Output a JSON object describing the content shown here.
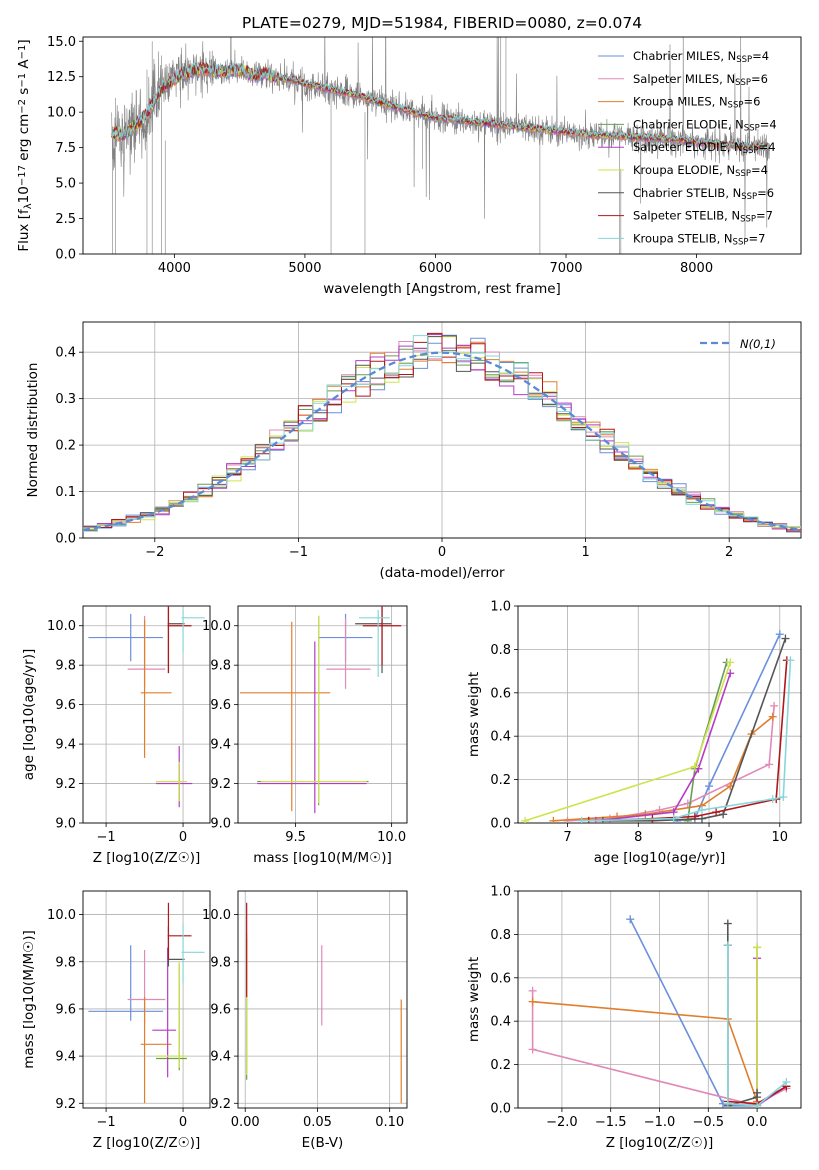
{
  "figure_title": "PLATE=0279, MJD=51984, FIBERID=0080, z=0.074",
  "colors": {
    "chabrier_miles": "#6a8fdc",
    "salpeter_miles": "#e08ab8",
    "kroupa_miles": "#e07e2c",
    "chabrier_elodie": "#6a9c54",
    "salpeter_elodie": "#b43cc4",
    "kroupa_elodie": "#cfe34c",
    "chabrier_stelib": "#555555",
    "salpeter_stelib": "#b0161a",
    "kroupa_stelib": "#86d6da",
    "data": "#808080",
    "normal": "#5a8ad4"
  },
  "chart_data": [
    {
      "id": "spectrum",
      "type": "line",
      "title": "PLATE=0279, MJD=51984, FIBERID=0080, z=0.074",
      "xlabel": "wavelength [Angstrom, rest frame]",
      "ylabel": "Flux [f_λ 10^-17 erg cm^-2 s^-1 A^-1]",
      "xlim": [
        3300,
        8800
      ],
      "ylim": [
        0,
        15.3
      ],
      "xticks": [
        4000,
        5000,
        6000,
        7000,
        8000
      ],
      "yticks": [
        0.0,
        2.5,
        5.0,
        7.5,
        10.0,
        12.5,
        15.0
      ],
      "ytick_labels": [
        "0.0",
        "2.5",
        "5.0",
        "7.5",
        "10.0",
        "12.5",
        "15.0"
      ],
      "legend_position": "top-right",
      "model_continuum": {
        "x": [
          3520,
          3600,
          3700,
          3800,
          3900,
          4000,
          4100,
          4200,
          4300,
          4400,
          4500,
          4600,
          4700,
          4800,
          4900,
          5000,
          5200,
          5400,
          5600,
          5800,
          6000,
          6200,
          6400,
          6600,
          6800,
          7000,
          7200,
          7400,
          7600,
          7800,
          8000,
          8200,
          8400,
          8550
        ],
        "y": [
          8.6,
          8.4,
          9.0,
          10.0,
          11.6,
          12.4,
          12.8,
          13.1,
          12.9,
          12.9,
          13.0,
          12.6,
          12.7,
          12.4,
          12.3,
          12.0,
          11.6,
          11.2,
          10.6,
          10.1,
          9.6,
          9.4,
          9.2,
          9.0,
          8.8,
          8.6,
          8.4,
          8.3,
          8.2,
          8.1,
          7.9,
          7.7,
          7.6,
          7.5
        ]
      },
      "series": [
        {
          "name": "Chabrier MILES, N_SSP=4",
          "color_key": "chabrier_miles"
        },
        {
          "name": "Salpeter MILES, N_SSP=6",
          "color_key": "salpeter_miles"
        },
        {
          "name": "Kroupa MILES, N_SSP=6",
          "color_key": "kroupa_miles"
        },
        {
          "name": "Chabrier ELODIE, N_SSP=4",
          "color_key": "chabrier_elodie"
        },
        {
          "name": "Salpeter ELODIE, N_SSP=4",
          "color_key": "salpeter_elodie"
        },
        {
          "name": "Kroupa ELODIE, N_SSP=4",
          "color_key": "kroupa_elodie"
        },
        {
          "name": "Chabrier STELIB, N_SSP=6",
          "color_key": "chabrier_stelib"
        },
        {
          "name": "Salpeter STELIB, N_SSP=7",
          "color_key": "salpeter_stelib"
        },
        {
          "name": "Kroupa STELIB, N_SSP=7",
          "color_key": "kroupa_stelib"
        }
      ]
    },
    {
      "id": "residuals",
      "type": "line",
      "xlabel": "(data-model)/error",
      "ylabel": "Normed distribution",
      "xlim": [
        -2.5,
        2.5
      ],
      "ylim": [
        0,
        0.465
      ],
      "xticks": [
        -2,
        -1,
        0,
        1,
        2
      ],
      "yticks": [
        0.0,
        0.1,
        0.2,
        0.3,
        0.4
      ],
      "ytick_labels": [
        "0.0",
        "0.1",
        "0.2",
        "0.3",
        "0.4"
      ],
      "grid": true,
      "legend_position": "top-right",
      "legend": "N(0,1)",
      "bin_width": 0.1
    },
    {
      "id": "age_vs_z",
      "type": "scatter",
      "xlabel": "Z [log10(Z/Z☉)]",
      "ylabel": "age [log10(age/yr)]",
      "xlim": [
        -1.3,
        0.35
      ],
      "ylim": [
        9.0,
        10.1
      ],
      "xticks": [
        -1,
        0
      ],
      "yticks": [
        9.0,
        9.2,
        9.4,
        9.6,
        9.8,
        10.0
      ],
      "grid": true,
      "points": [
        {
          "s": "chabrier_miles",
          "x": -0.68,
          "xerr": [
            0.55,
            0.42
          ],
          "y": 9.94,
          "yerr": [
            0.12,
            0.12
          ]
        },
        {
          "s": "salpeter_miles",
          "x": -0.5,
          "xerr": [
            0.22,
            0.27
          ],
          "y": 9.78,
          "yerr": [
            0.09,
            0.27
          ]
        },
        {
          "s": "kroupa_miles",
          "x": -0.5,
          "xerr": [
            0.05,
            0.35
          ],
          "y": 9.66,
          "yerr": [
            0.33,
            0.37
          ]
        },
        {
          "s": "chabrier_elodie",
          "x": -0.05,
          "xerr": [
            0.3,
            0.1
          ],
          "y": 9.21,
          "yerr": [
            0.1,
            0.09
          ]
        },
        {
          "s": "salpeter_elodie",
          "x": -0.05,
          "xerr": [
            0.3,
            0.17
          ],
          "y": 9.2,
          "yerr": [
            0.12,
            0.19
          ]
        },
        {
          "s": "kroupa_elodie",
          "x": -0.05,
          "xerr": [
            0.3,
            0.1
          ],
          "y": 9.21,
          "yerr": [
            0.1,
            0.1
          ]
        },
        {
          "s": "chabrier_stelib",
          "x": -0.19,
          "xerr": [
            0.01,
            0.21
          ],
          "y": 10.01,
          "yerr": [
            0.25,
            0.11
          ]
        },
        {
          "s": "salpeter_stelib",
          "x": -0.19,
          "xerr": [
            0.01,
            0.3
          ],
          "y": 10.0,
          "yerr": [
            0.24,
            0.12
          ]
        },
        {
          "s": "kroupa_stelib",
          "x": 0.0,
          "xerr": [
            0.02,
            0.28
          ],
          "y": 10.04,
          "yerr": [
            0.17,
            0.04
          ]
        }
      ]
    },
    {
      "id": "age_vs_mass",
      "type": "scatter",
      "xlabel": "mass [log10(M/M☉)]",
      "ylabel": "",
      "xlim": [
        9.2,
        10.08
      ],
      "ylim": [
        9.0,
        10.1
      ],
      "xticks": [
        9.5,
        10.0
      ],
      "yticks": [
        9.0,
        9.2,
        9.4,
        9.6,
        9.8,
        10.0
      ],
      "grid": true,
      "points": [
        {
          "s": "chabrier_miles",
          "x": 9.76,
          "xerr": [
            0.14,
            0.14
          ],
          "y": 9.94,
          "yerr": [
            0.12,
            0.12
          ]
        },
        {
          "s": "salpeter_miles",
          "x": 9.76,
          "xerr": [
            0.1,
            0.13
          ],
          "y": 9.78,
          "yerr": [
            0.1,
            0.26
          ]
        },
        {
          "s": "kroupa_miles",
          "x": 9.48,
          "xerr": [
            0.27,
            0.2
          ],
          "y": 9.66,
          "yerr": [
            0.6,
            0.36
          ]
        },
        {
          "s": "chabrier_elodie",
          "x": 9.62,
          "xerr": [
            0.32,
            0.26
          ],
          "y": 9.21,
          "yerr": [
            0.12,
            0.84
          ]
        },
        {
          "s": "salpeter_elodie",
          "x": 9.6,
          "xerr": [
            0.3,
            0.27
          ],
          "y": 9.2,
          "yerr": [
            0.15,
            0.72
          ]
        },
        {
          "s": "kroupa_elodie",
          "x": 9.62,
          "xerr": [
            0.3,
            0.25
          ],
          "y": 9.21,
          "yerr": [
            0.11,
            0.84
          ]
        },
        {
          "s": "chabrier_stelib",
          "x": 9.95,
          "xerr": [
            0.14,
            0.05
          ],
          "y": 10.01,
          "yerr": [
            0.25,
            0.1
          ]
        },
        {
          "s": "salpeter_stelib",
          "x": 9.95,
          "xerr": [
            0.1,
            0.1
          ],
          "y": 10.0,
          "yerr": [
            0.2,
            0.11
          ]
        },
        {
          "s": "kroupa_stelib",
          "x": 9.93,
          "xerr": [
            0.1,
            0.06
          ],
          "y": 10.04,
          "yerr": [
            0.3,
            0.04
          ]
        }
      ]
    },
    {
      "id": "weight_vs_age",
      "type": "line",
      "xlabel": "age [log10(age/yr)]",
      "ylabel": "mass weight",
      "xlim": [
        6.3,
        10.3
      ],
      "ylim": [
        0.0,
        1.0
      ],
      "xticks": [
        7,
        8,
        9,
        10
      ],
      "yticks": [
        0.0,
        0.2,
        0.4,
        0.6,
        0.8,
        1.0
      ],
      "ytick_labels": [
        "0.0",
        "0.2",
        "0.4",
        "0.6",
        "0.8",
        "1.0"
      ],
      "grid": true,
      "series": [
        {
          "s": "chabrier_miles",
          "x": [
            8.55,
            8.8,
            9.0,
            10.0
          ],
          "y": [
            0.01,
            0.02,
            0.17,
            0.87
          ]
        },
        {
          "s": "salpeter_miles",
          "x": [
            7.0,
            7.6,
            8.3,
            8.7,
            9.85,
            9.92
          ],
          "y": [
            0.01,
            0.02,
            0.06,
            0.09,
            0.27,
            0.54
          ]
        },
        {
          "s": "kroupa_miles",
          "x": [
            6.8,
            7.7,
            8.1,
            8.9,
            9.3,
            9.6,
            9.9
          ],
          "y": [
            0.01,
            0.03,
            0.04,
            0.08,
            0.17,
            0.41,
            0.49
          ]
        },
        {
          "s": "chabrier_elodie",
          "x": [
            8.7,
            8.8,
            9.25
          ],
          "y": [
            0.01,
            0.25,
            0.74
          ]
        },
        {
          "s": "salpeter_elodie",
          "x": [
            7.4,
            8.5,
            8.85,
            9.3
          ],
          "y": [
            0.01,
            0.05,
            0.25,
            0.69
          ]
        },
        {
          "s": "kroupa_elodie",
          "x": [
            6.4,
            8.8,
            9.3
          ],
          "y": [
            0.01,
            0.26,
            0.74
          ]
        },
        {
          "s": "chabrier_stelib",
          "x": [
            7.5,
            8.2,
            8.9,
            9.2,
            10.08
          ],
          "y": [
            0.01,
            0.01,
            0.02,
            0.04,
            0.85
          ]
        },
        {
          "s": "salpeter_stelib",
          "x": [
            7.3,
            8.2,
            8.8,
            9.1,
            9.95,
            10.1
          ],
          "y": [
            0.01,
            0.02,
            0.03,
            0.05,
            0.11,
            0.75
          ]
        },
        {
          "s": "kroupa_stelib",
          "x": [
            7.2,
            8.5,
            8.9,
            9.9,
            10.05,
            10.15
          ],
          "y": [
            0.01,
            0.02,
            0.06,
            0.11,
            0.12,
            0.75
          ]
        }
      ]
    },
    {
      "id": "mass_vs_z",
      "type": "scatter",
      "xlabel": "Z [log10(Z/Z☉)]",
      "ylabel": "mass [log10(M/M☉)]",
      "xlim": [
        -1.3,
        0.35
      ],
      "ylim": [
        9.18,
        10.1
      ],
      "xticks": [
        -1,
        0
      ],
      "yticks": [
        9.2,
        9.4,
        9.6,
        9.8,
        10.0
      ],
      "grid": true,
      "points": [
        {
          "s": "chabrier_miles",
          "x": -0.68,
          "xerr": [
            0.55,
            0.42
          ],
          "y": 9.59,
          "yerr": [
            0.04,
            0.28
          ]
        },
        {
          "s": "salpeter_miles",
          "x": -0.5,
          "xerr": [
            0.22,
            0.27
          ],
          "y": 9.64,
          "yerr": [
            0.1,
            0.21
          ]
        },
        {
          "s": "kroupa_miles",
          "x": -0.5,
          "xerr": [
            0.05,
            0.35
          ],
          "y": 9.45,
          "yerr": [
            0.25,
            0.2
          ]
        },
        {
          "s": "chabrier_elodie",
          "x": -0.05,
          "xerr": [
            0.3,
            0.1
          ],
          "y": 9.39,
          "yerr": [
            0.05,
            0.4
          ]
        },
        {
          "s": "salpeter_elodie",
          "x": -0.2,
          "xerr": [
            0.2,
            0.11
          ],
          "y": 9.51,
          "yerr": [
            0.2,
            0.35
          ]
        },
        {
          "s": "kroupa_elodie",
          "x": -0.05,
          "xerr": [
            0.3,
            0.1
          ],
          "y": 9.4,
          "yerr": [
            0.05,
            0.4
          ]
        },
        {
          "s": "chabrier_stelib",
          "x": -0.19,
          "xerr": [
            0.01,
            0.21
          ],
          "y": 9.81,
          "yerr": [
            0.03,
            0.14
          ]
        },
        {
          "s": "salpeter_stelib",
          "x": -0.19,
          "xerr": [
            0.01,
            0.3
          ],
          "y": 9.91,
          "yerr": [
            0.1,
            0.14
          ]
        },
        {
          "s": "kroupa_stelib",
          "x": 0.0,
          "xerr": [
            0.02,
            0.28
          ],
          "y": 9.84,
          "yerr": [
            0.13,
            0.12
          ]
        }
      ]
    },
    {
      "id": "mass_vs_ebv",
      "type": "scatter",
      "xlabel": "E(B-V)",
      "ylabel": "",
      "xlim": [
        -0.005,
        0.112
      ],
      "ylim": [
        9.18,
        10.1
      ],
      "xticks": [
        0.0,
        0.05,
        0.1
      ],
      "xtick_labels": [
        "0.00",
        "0.05",
        "0.10"
      ],
      "yticks": [
        9.2,
        9.4,
        9.6,
        9.8,
        10.0
      ],
      "grid": true,
      "points": [
        {
          "s": "salpeter_miles",
          "x": 0.053,
          "xerr": [
            0,
            0
          ],
          "y": 9.7,
          "yerr": [
            0.17,
            0.17
          ]
        },
        {
          "s": "kroupa_miles",
          "x": 0.108,
          "xerr": [
            0,
            0
          ],
          "y": 9.42,
          "yerr": [
            0.22,
            0.22
          ]
        },
        {
          "s": "chabrier_elodie",
          "x": 0.001,
          "xerr": [
            0,
            0
          ],
          "y": 9.6,
          "yerr": [
            0.3,
            0.3
          ]
        },
        {
          "s": "kroupa_elodie",
          "x": 0.001,
          "xerr": [
            0,
            0
          ],
          "y": 9.62,
          "yerr": [
            0.3,
            0.3
          ]
        },
        {
          "s": "salpeter_stelib",
          "x": 0.001,
          "xerr": [
            0,
            0
          ],
          "y": 9.85,
          "yerr": [
            0.2,
            0.2
          ]
        }
      ]
    },
    {
      "id": "weight_vs_z",
      "type": "line",
      "xlabel": "Z [log10(Z/Z☉)]",
      "ylabel": "mass weight",
      "xlim": [
        -2.45,
        0.45
      ],
      "ylim": [
        0.0,
        1.0
      ],
      "xticks": [
        -2.0,
        -1.5,
        -1.0,
        -0.5,
        0.0
      ],
      "xtick_labels": [
        "−2.0",
        "−1.5",
        "−1.0",
        "−0.5",
        "0.0"
      ],
      "yticks": [
        0.0,
        0.2,
        0.4,
        0.6,
        0.8,
        1.0
      ],
      "ytick_labels": [
        "0.0",
        "0.2",
        "0.4",
        "0.6",
        "0.8",
        "1.0"
      ],
      "grid": true,
      "series": [
        {
          "s": "chabrier_miles",
          "x": [
            -1.3,
            -0.35,
            -0.3,
            0.0
          ],
          "y": [
            0.87,
            0.02,
            0.01,
            0.01
          ]
        },
        {
          "s": "salpeter_miles",
          "x": [
            -2.3,
            -2.3,
            0.0,
            0.0,
            0.3
          ],
          "y": [
            0.54,
            0.27,
            0.01,
            0.02,
            0.09
          ]
        },
        {
          "s": "kroupa_miles",
          "x": [
            -2.3,
            -0.3,
            0.0,
            0.0
          ],
          "y": [
            0.49,
            0.41,
            0.03,
            0.01
          ]
        },
        {
          "s": "chabrier_elodie",
          "x": [
            0.0,
            0.0
          ],
          "y": [
            0.74,
            0.01
          ]
        },
        {
          "s": "salpeter_elodie",
          "x": [
            0.0,
            0.0,
            0.3
          ],
          "y": [
            0.69,
            0.01,
            0.1
          ]
        },
        {
          "s": "kroupa_elodie",
          "x": [
            0.0,
            0.0
          ],
          "y": [
            0.74,
            0.01
          ]
        },
        {
          "s": "chabrier_stelib",
          "x": [
            -0.3,
            -0.3,
            0.0,
            0.0
          ],
          "y": [
            0.85,
            0.01,
            0.05,
            0.07
          ]
        },
        {
          "s": "salpeter_stelib",
          "x": [
            -0.3,
            -0.3,
            0.0,
            0.3
          ],
          "y": [
            0.75,
            0.03,
            0.02,
            0.1
          ]
        },
        {
          "s": "kroupa_stelib",
          "x": [
            -0.3,
            -0.3,
            0.0,
            0.3
          ],
          "y": [
            0.75,
            0.02,
            0.01,
            0.12
          ]
        }
      ]
    }
  ]
}
